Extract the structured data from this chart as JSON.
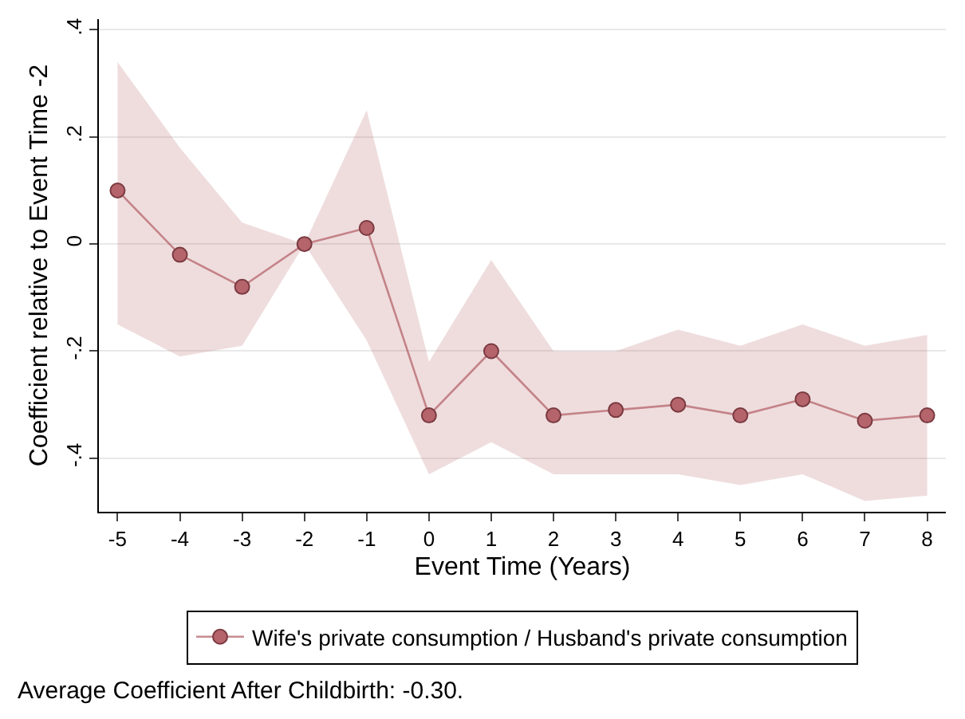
{
  "chart_data": {
    "type": "line",
    "xlabel": "Event Time (Years)",
    "ylabel": "Coefficient relative to Event Time -2",
    "x": [
      -5,
      -4,
      -3,
      -2,
      -1,
      0,
      1,
      2,
      3,
      4,
      5,
      6,
      7,
      8
    ],
    "series": [
      {
        "name": "Wife's private consumption / Husband's private consumption",
        "color": "#b5646b",
        "values": [
          0.1,
          -0.02,
          -0.08,
          0,
          0.03,
          -0.32,
          -0.2,
          -0.32,
          -0.31,
          -0.3,
          -0.32,
          -0.29,
          -0.33,
          -0.32
        ],
        "lower": [
          -0.15,
          -0.21,
          -0.19,
          0,
          -0.18,
          -0.43,
          -0.37,
          -0.43,
          -0.43,
          -0.43,
          -0.45,
          -0.43,
          -0.48,
          -0.47
        ],
        "upper": [
          0.34,
          0.18,
          0.04,
          0,
          0.25,
          -0.22,
          -0.03,
          -0.2,
          -0.2,
          -0.16,
          -0.19,
          -0.15,
          -0.19,
          -0.17
        ]
      }
    ],
    "xlim": [
      -5.3,
      8.3
    ],
    "ylim": [
      -0.5,
      0.42
    ],
    "xticks": [
      -5,
      -4,
      -3,
      -2,
      -1,
      0,
      1,
      2,
      3,
      4,
      5,
      6,
      7,
      8
    ],
    "yticks": [
      {
        "value": -0.4,
        "label": "-.4"
      },
      {
        "value": -0.2,
        "label": "-.2"
      },
      0,
      {
        "value": 0.2,
        "label": ".2"
      },
      {
        "value": 0.4,
        "label": ".4"
      }
    ],
    "grid": "y",
    "legend": "bottom",
    "marker": "circle",
    "line_style": "solid",
    "annotations": [
      "Average Coefficient After Childbirth: -0.30."
    ]
  }
}
